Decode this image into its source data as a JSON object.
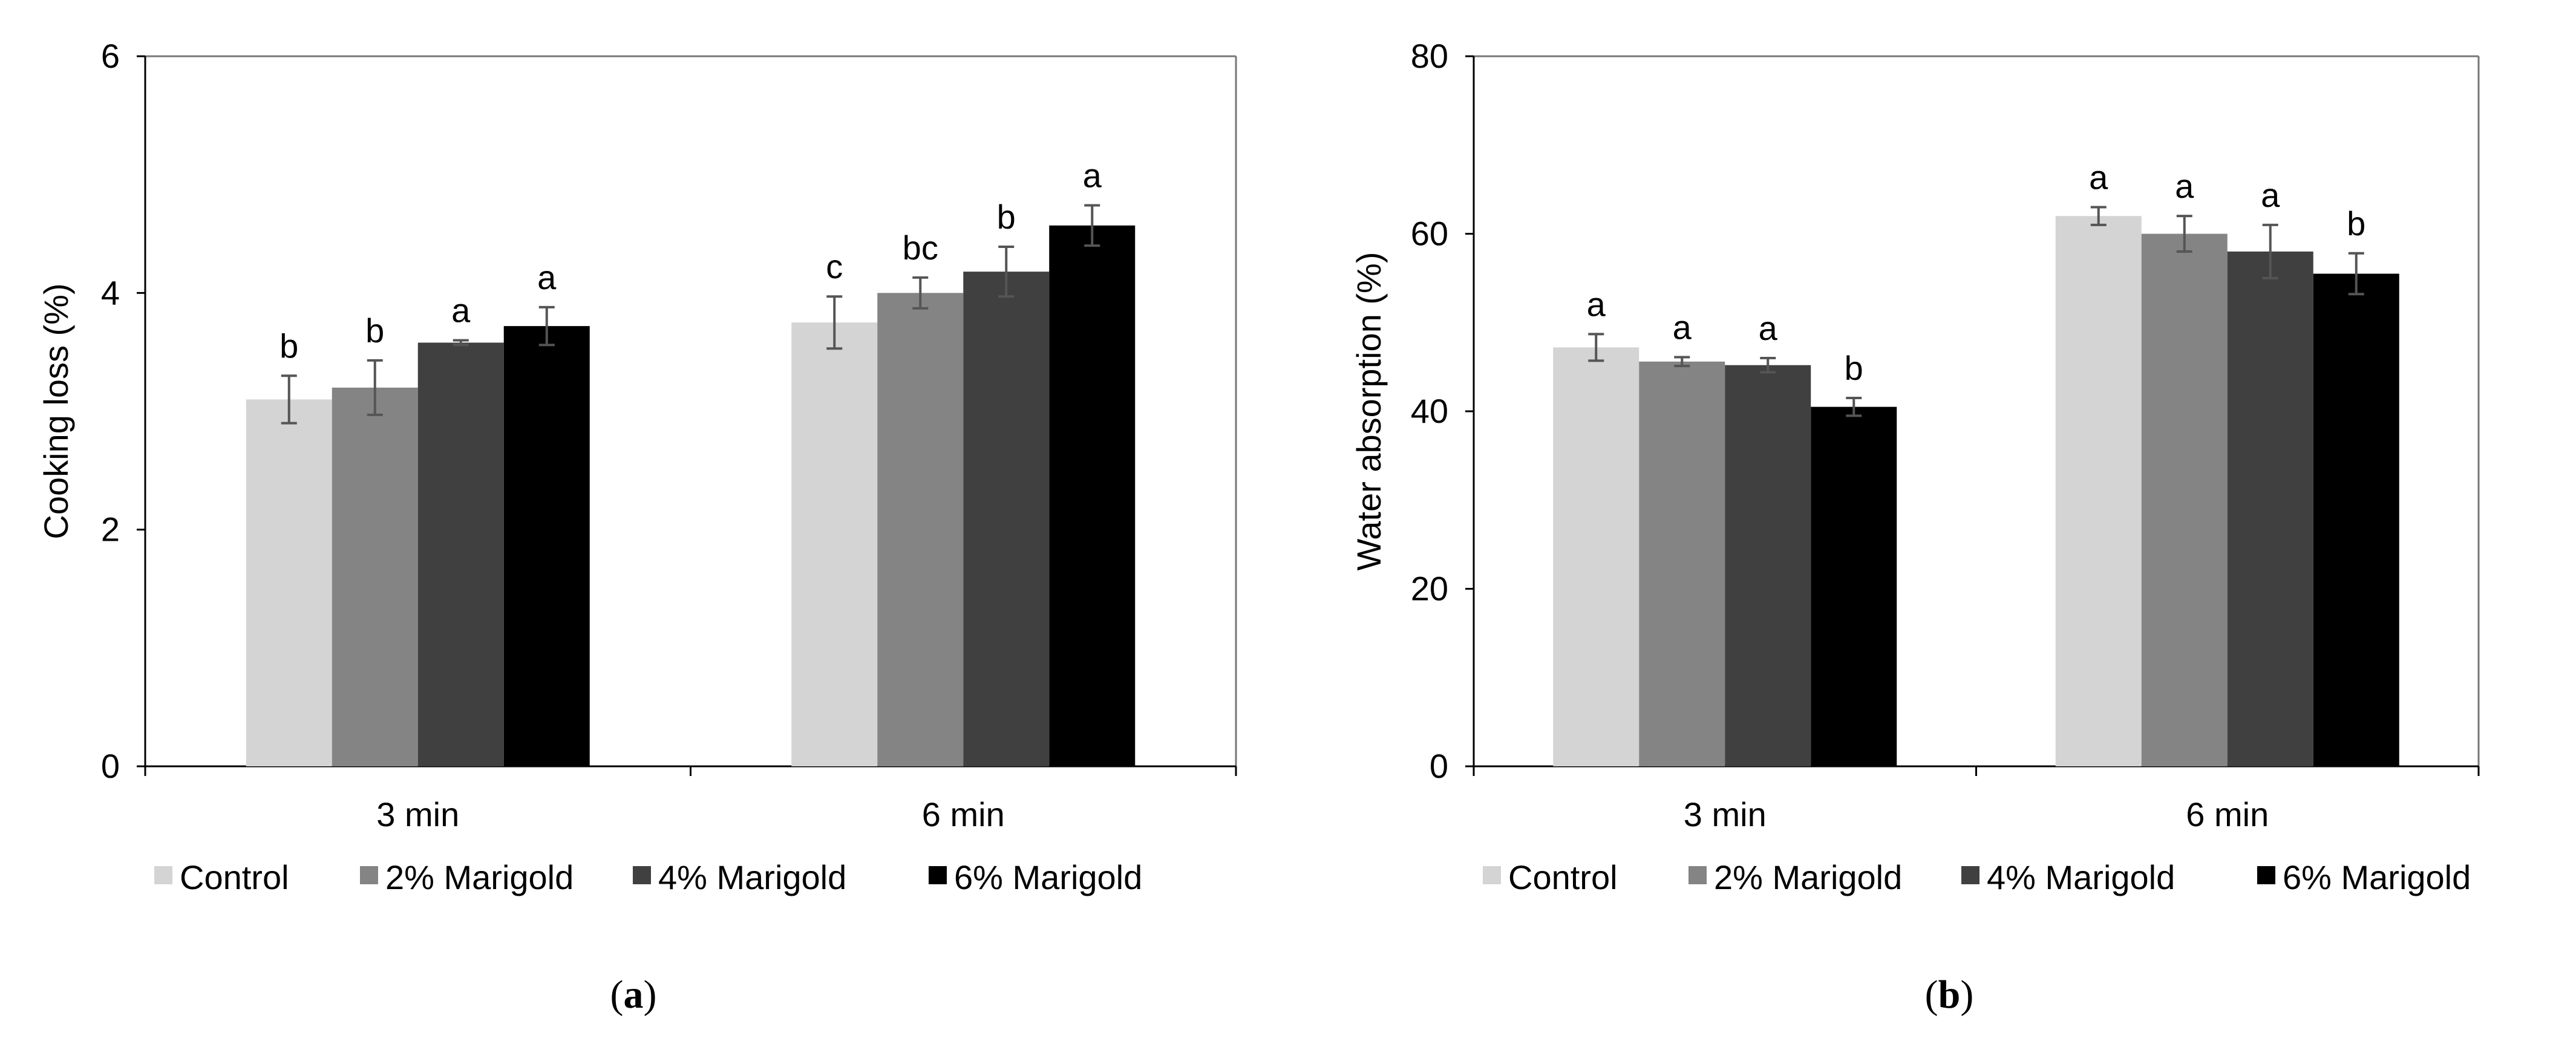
{
  "legend": {
    "entries": [
      {
        "name": "Control",
        "color": "#d4d4d4"
      },
      {
        "name": "2% Marigold",
        "color": "#848484"
      },
      {
        "name": "4% Marigold",
        "color": "#404040"
      },
      {
        "name": "6% Marigold",
        "color": "#000000"
      }
    ]
  },
  "chart_data": [
    {
      "type": "bar",
      "panel_label": "(a)",
      "panel_letter": "a",
      "title": "",
      "xlabel": "",
      "ylabel": "Cooking loss (%)",
      "ylim": [
        0,
        6
      ],
      "yticks": [
        0,
        2,
        4,
        6
      ],
      "categories": [
        "3 min",
        "6 min"
      ],
      "legend_position": "bottom",
      "series": [
        {
          "name": "Control",
          "values": [
            3.1,
            3.75
          ],
          "errors": [
            0.2,
            0.22
          ],
          "letters": [
            "b",
            "c"
          ]
        },
        {
          "name": "2% Marigold",
          "values": [
            3.2,
            4.0
          ],
          "errors": [
            0.23,
            0.13
          ],
          "letters": [
            "b",
            "bc"
          ]
        },
        {
          "name": "4% Marigold",
          "values": [
            3.58,
            4.18
          ],
          "errors": [
            0.02,
            0.21
          ],
          "letters": [
            "a",
            "b"
          ]
        },
        {
          "name": "6% Marigold",
          "values": [
            3.72,
            4.57
          ],
          "errors": [
            0.16,
            0.17
          ],
          "letters": [
            "a",
            "a"
          ]
        }
      ]
    },
    {
      "type": "bar",
      "panel_label": "(b)",
      "panel_letter": "b",
      "title": "",
      "xlabel": "",
      "ylabel": "Water absorption (%)",
      "ylim": [
        0,
        80
      ],
      "yticks": [
        0,
        20,
        40,
        60,
        80
      ],
      "categories": [
        "3 min",
        "6 min"
      ],
      "legend_position": "bottom",
      "series": [
        {
          "name": "Control",
          "values": [
            47.2,
            62.0
          ],
          "errors": [
            1.5,
            1.0
          ],
          "letters": [
            "a",
            "a"
          ]
        },
        {
          "name": "2% Marigold",
          "values": [
            45.6,
            60.0
          ],
          "errors": [
            0.5,
            2.0
          ],
          "letters": [
            "a",
            "a"
          ]
        },
        {
          "name": "4% Marigold",
          "values": [
            45.2,
            58.0
          ],
          "errors": [
            0.8,
            3.0
          ],
          "letters": [
            "a",
            "a"
          ]
        },
        {
          "name": "6% Marigold",
          "values": [
            40.5,
            55.5
          ],
          "errors": [
            1.0,
            2.3
          ],
          "letters": [
            "b",
            "b"
          ]
        }
      ]
    }
  ]
}
